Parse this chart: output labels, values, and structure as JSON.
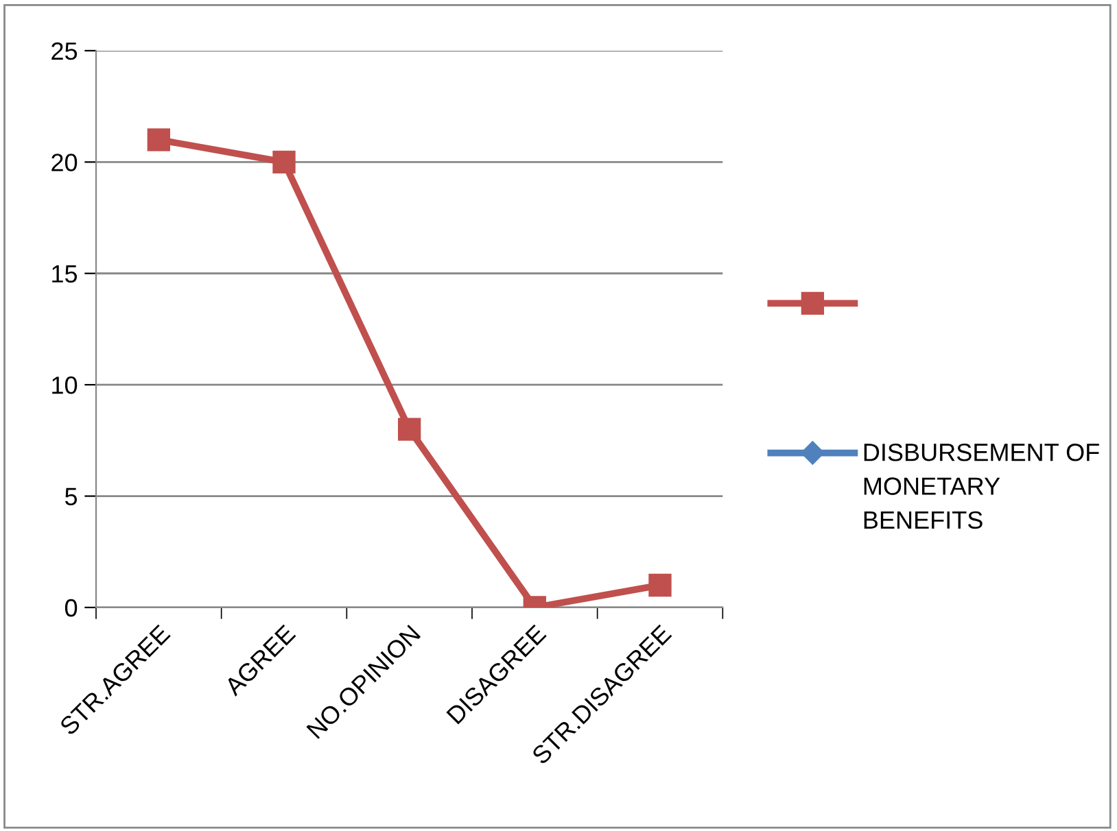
{
  "chart_data": {
    "type": "line",
    "categories": [
      "STR.AGREE",
      "AGREE",
      "NO.OPINION",
      "DISAGREE",
      "STR.DISAGREE"
    ],
    "series": [
      {
        "color": "#c0504d",
        "values": [
          21,
          20,
          8,
          0,
          1
        ],
        "marker": "square"
      },
      {
        "name": "DISBURSEMENT OF MONETARY BENEFITS",
        "color": "#4f81bd",
        "values": [
          null,
          null,
          null,
          null,
          null
        ],
        "marker": "diamond"
      }
    ],
    "ylim": [
      0,
      25
    ],
    "yticks": [
      0,
      5,
      10,
      15,
      20,
      25
    ],
    "grid": "y",
    "legend": "right"
  }
}
